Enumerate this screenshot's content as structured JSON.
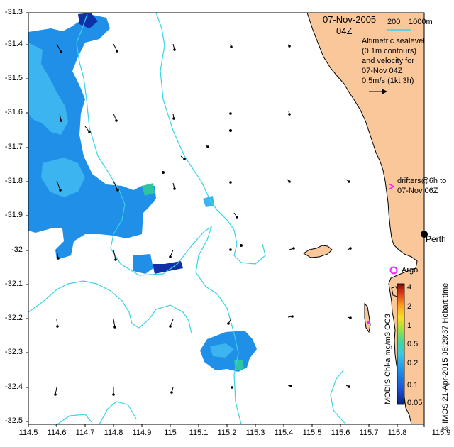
{
  "map": {
    "date": "07-Nov-2005",
    "time": "04Z",
    "scale_label": "200",
    "scale_unit": "1000m",
    "legend_lines": [
      "Altimetric sealevel",
      "(0.1m contours)",
      "and velocity for",
      "07-Nov 04Z",
      "0.5m/s (1kt 3h)"
    ],
    "drifters_lines": [
      "drifters@6h to",
      "07-Nov 06Z"
    ],
    "place_perth": "Perth",
    "place_argo": "Argo",
    "x_ticks": [
      "114.5",
      "114.6",
      "114.7",
      "114.8",
      "114.9",
      "115",
      "115.1",
      "115.2",
      "115.3",
      "115.4",
      "115.5",
      "115.6",
      "115.7",
      "115.8",
      "115.9"
    ],
    "y_ticks": [
      "-31.3",
      "-31.4",
      "-31.5",
      "-31.6",
      "-31.7",
      "-31.8",
      "-31.9",
      "-32",
      "-32.1",
      "-32.2",
      "-32.3",
      "-32.4",
      "-32.5"
    ],
    "colorbar_ticks": [
      "4",
      "2",
      "1",
      "0.5",
      "0.2",
      "0.1",
      "0.05"
    ],
    "colorbar_label": "MODIS Chl-a mg/m3 OC3",
    "credit": "© IMOS 21-Apr-2015 08:29:37 Hobart time",
    "colors": {
      "land": "#f9c799",
      "contour": "#36d4e6",
      "chl_blue": "#1f8fe8",
      "chl_light": "#3bb4f0",
      "chl_dark": "#1030a8",
      "marker": "#ff22ff"
    }
  }
}
